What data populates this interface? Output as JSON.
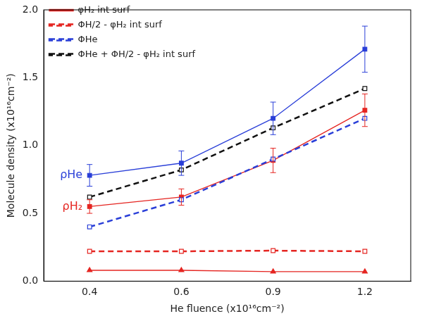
{
  "chart_data": {
    "type": "line",
    "x_label": "He fluence (x10¹⁶cm⁻²)",
    "y_label": "Molecule density (x10¹⁶cm⁻²)",
    "categories": [
      "0.4",
      "0.6",
      "0.9",
      "1.2"
    ],
    "ylim": [
      0,
      2.0
    ],
    "yticks": [
      {
        "value": 0,
        "label": "0.0"
      },
      {
        "value": 0.5,
        "label": "0.5"
      },
      {
        "value": 1.0,
        "label": "1.0"
      },
      {
        "value": 1.5,
        "label": "1.5"
      },
      {
        "value": 2.0,
        "label": "2.0"
      }
    ],
    "grid": false,
    "legend": "upper left",
    "series": [
      {
        "name": "φH₂ int surf",
        "color": "#e52521",
        "marker": "triangle",
        "line_style": "solid",
        "values": [
          0.08,
          0.08,
          0.07,
          0.07
        ]
      },
      {
        "name": "ΦH/2 - φH₂ int surf",
        "color": "#e52521",
        "marker": "open-square",
        "line_style": "dashed",
        "values": [
          0.22,
          0.22,
          0.225,
          0.22
        ]
      },
      {
        "name": "ΦHe",
        "color": "#2a3fd8",
        "marker": "open-square",
        "line_style": "dashed",
        "values": [
          0.4,
          0.6,
          0.9,
          1.2
        ]
      },
      {
        "name": "ΦHe + ΦH/2 - φH₂ int surf",
        "color": "#111111",
        "marker": "open-square",
        "line_style": "dashed",
        "values": [
          0.62,
          0.82,
          1.13,
          1.42
        ]
      },
      {
        "color": "#2a3fd8",
        "marker": "square",
        "line_style": "solid",
        "values": [
          0.78,
          0.87,
          1.2,
          1.71
        ],
        "errors": [
          0.08,
          0.09,
          0.12,
          0.17
        ]
      },
      {
        "color": "#e52521",
        "marker": "square",
        "line_style": "solid",
        "values": [
          0.55,
          0.62,
          0.89,
          1.26
        ],
        "errors": [
          0.05,
          0.06,
          0.09,
          0.12
        ]
      }
    ],
    "annotations": [
      {
        "text": "ρHe",
        "x": "0.4",
        "y": 0.78,
        "color": "#2a3fd8"
      },
      {
        "text": "ρH₂",
        "x": "0.4",
        "y": 0.55,
        "color": "#e52521"
      }
    ]
  }
}
